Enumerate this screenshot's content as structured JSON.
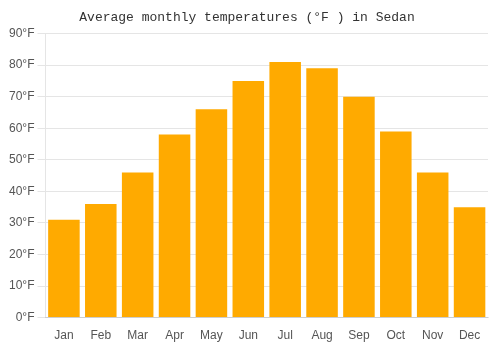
{
  "chart_data": {
    "type": "bar",
    "title": "Average monthly temperatures (°F ) in Sedan",
    "categories": [
      "Jan",
      "Feb",
      "Mar",
      "Apr",
      "May",
      "Jun",
      "Jul",
      "Aug",
      "Sep",
      "Oct",
      "Nov",
      "Dec"
    ],
    "values": [
      31,
      36,
      46,
      58,
      66,
      75,
      81,
      79,
      70,
      59,
      46,
      35
    ],
    "color": "#FFAA00",
    "ylim": [
      0,
      90
    ],
    "yticks": [
      {
        "value": 0,
        "label": "0°F"
      },
      {
        "value": 10,
        "label": "10°F"
      },
      {
        "value": 20,
        "label": "20°F"
      },
      {
        "value": 30,
        "label": "30°F"
      },
      {
        "value": 40,
        "label": "40°F"
      },
      {
        "value": 50,
        "label": "50°F"
      },
      {
        "value": 60,
        "label": "60°F"
      },
      {
        "value": 70,
        "label": "70°F"
      },
      {
        "value": 80,
        "label": "80°F"
      },
      {
        "value": 90,
        "label": "90°F"
      }
    ],
    "grid": true
  }
}
